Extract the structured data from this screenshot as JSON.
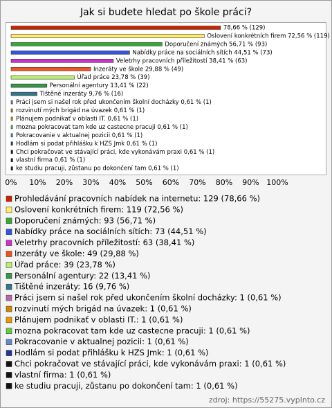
{
  "chart_data": {
    "type": "bar",
    "orientation": "horizontal",
    "title": "Jak si budete hledat po škole práci?",
    "source": "zdroj: https://55275.vyplnto.cz",
    "categories": [
      "Prohledávání pracovních nabídek na internetu: 129 (78,66 %)",
      "Oslovení konkrétních firem: 119 (72,56 %)",
      "Doporučení známých: 93 (56,71 %)",
      "Nabídky práce na sociálních sítích: 73 (44,51 %)",
      "Veletrhy pracovních příležitostí: 63 (38,41 %)",
      "Inzeráty ve škole: 49 (29,88 %)",
      "Úřad práce: 39 (23,78 %)",
      "Personální agentury: 22 (13,41 %)",
      "Tištěné inzeráty: 16 (9,76 %)",
      "Práci jsem si našel rok před ukončením školní docházky: 1 (0,61 %)",
      "rozvinutí mých brigád na úvazek: 1 (0,61 %)",
      "Plánujem podnikať v oblasti IT.: 1 (0,61 %)",
      "mozna pokracovat tam kde uz castecne pracuji: 1 (0,61 %)",
      "Pokracovanie v aktualnej pozicii: 1 (0,61 %)",
      "Hodlám si podat přihlášku k HZS Jmk: 1 (0,61 %)",
      "Chci pokračovat ve stávající práci, kde vykonávám praxi: 1 (0,61 %)",
      "vlastní firma: 1 (0,61 %)",
      "ke studiu pracuji, zůstanu po dokončení tam: 1 (0,61 %)"
    ],
    "values": [
      78.66,
      72.56,
      56.71,
      44.51,
      38.41,
      29.88,
      23.78,
      13.41,
      9.76,
      0.61,
      0.61,
      0.61,
      0.61,
      0.61,
      0.61,
      0.61,
      0.61,
      0.61
    ],
    "value_labels": [
      "78,66 % (129)",
      "Oslovení konkrétních firem 72,56 % (119)",
      "Doporučení známých 56,71 % (93)",
      "Nabídky práce na sociálních sítích 44,51 % (73)",
      "Veletrhy pracovních příležitostí 38,41 % (63)",
      "Inzeráty ve škole 29,88 % (49)",
      "Úřad práce 23,78 % (39)",
      "Personální agentury 13,41 % (22)",
      "Tištěné inzeráty 9,76 % (16)",
      "Práci jsem si našel rok před ukončením školní docházky 0,61 % (1)",
      "rozvinutí mých brigád na úvazek 0,61 % (1)",
      "Plánujem podnikať v oblasti IT. 0,61 % (1)",
      "mozna pokracovat tam kde uz castecne pracuji 0,61 % (1)",
      "Pokracovanie v aktualnej pozicii 0,61 % (1)",
      "Hodlám si podat přihlášku k HZS Jmk 0,61 % (1)",
      "Chci pokračovat ve stávající práci, kde vykonávám praxi 0,61 % (1)",
      "vlastní firma 0,61 % (1)",
      "ke studiu pracuji, zůstanu po dokončení tam 0,61 % (1)"
    ],
    "colors": [
      "#cc2200",
      "#ffee66",
      "#33aa33",
      "#3355dd",
      "#cc33cc",
      "#ee5522",
      "#bbee77",
      "#339944",
      "#337788",
      "#bb66aa",
      "#cc8800",
      "#ee9900",
      "#66cc44",
      "#6688cc",
      "#223399",
      "#111111",
      "#111111",
      "#111111"
    ],
    "xlim": [
      0,
      100
    ],
    "xticks": [
      {
        "value": 0,
        "label": "0%"
      },
      {
        "value": 10,
        "label": "10%"
      },
      {
        "value": 20,
        "label": "20%"
      },
      {
        "value": 30,
        "label": "30%"
      },
      {
        "value": 40,
        "label": "40%"
      },
      {
        "value": 50,
        "label": "50%"
      },
      {
        "value": 60,
        "label": "60%"
      },
      {
        "value": 70,
        "label": "70%"
      },
      {
        "value": 80,
        "label": "80%"
      },
      {
        "value": 90,
        "label": "90%"
      },
      {
        "value": 100,
        "label": "100%"
      }
    ]
  }
}
